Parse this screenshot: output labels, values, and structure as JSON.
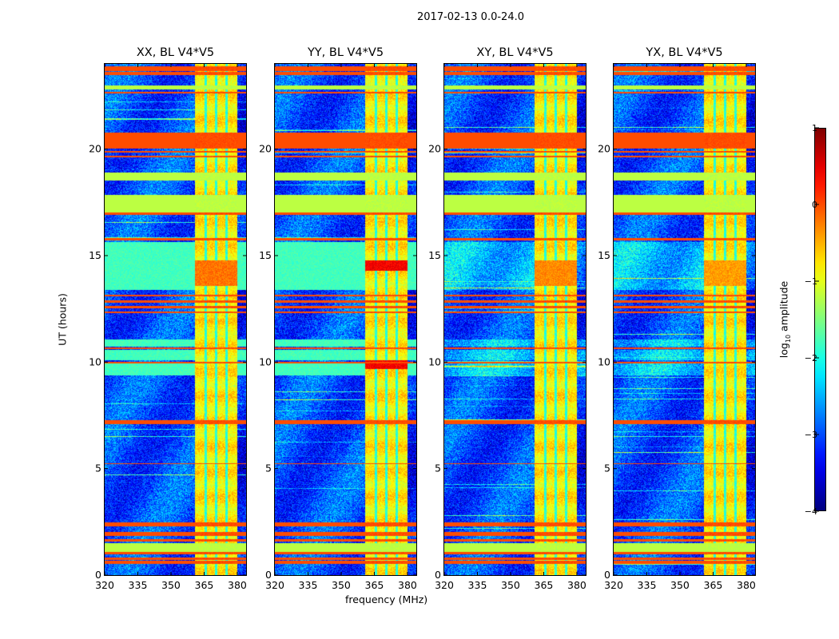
{
  "suptitle": "2017-02-13 0.0-24.0",
  "chart_data": {
    "type": "heatmap",
    "title": "2017-02-13 0.0-24.0",
    "xlabel": "frequency (MHz)",
    "ylabel": "UT (hours)",
    "xlim": [
      320,
      384
    ],
    "ylim": [
      0,
      24
    ],
    "xticks": [
      320,
      335,
      350,
      365,
      380
    ],
    "yticks": [
      0,
      5,
      10,
      15,
      20
    ],
    "colorbar": {
      "label_main": "log",
      "label_sub": "10",
      "label_rest": " amplitude",
      "colormap": "jet",
      "range": [
        -4,
        1
      ],
      "ticks": [
        1,
        0,
        -1,
        -2,
        -3,
        -4
      ],
      "tick_labels": [
        "1",
        "0",
        "−1",
        "−2",
        "−3",
        "−4"
      ]
    },
    "background_level": -3.0,
    "rfi_region": {
      "freq": [
        360.5,
        380
      ],
      "level": -0.8,
      "gaps_mhz": [
        365.5,
        370.2,
        375
      ]
    },
    "bands": [
      {
        "t": [
          23.7,
          23.9
        ],
        "level": 0.0
      },
      {
        "t": [
          23.5,
          23.65
        ],
        "level": 0.0
      },
      {
        "t": [
          22.8,
          23.0
        ],
        "level": -1.2
      },
      {
        "t": [
          22.65,
          22.72
        ],
        "level": 0.0
      },
      {
        "t": [
          20.05,
          20.8
        ],
        "level": 0.0
      },
      {
        "t": [
          19.85,
          19.92
        ],
        "level": 0.0
      },
      {
        "t": [
          19.65,
          19.72
        ],
        "level": 0.0
      },
      {
        "t": [
          18.55,
          18.9
        ],
        "level": -1.2
      },
      {
        "t": [
          17.05,
          17.85
        ],
        "level": -1.2
      },
      {
        "t": [
          16.95,
          17.05
        ],
        "level": 0.0
      },
      {
        "t": [
          15.75,
          15.85
        ],
        "level": 0.0
      },
      {
        "t": [
          13.4,
          15.65
        ],
        "level": -1.8,
        "partial": true
      },
      {
        "t": [
          13.1,
          13.2
        ],
        "level": 0.0
      },
      {
        "t": [
          12.8,
          12.9
        ],
        "level": 0.0
      },
      {
        "t": [
          12.55,
          12.65
        ],
        "level": 0.0
      },
      {
        "t": [
          12.3,
          12.38
        ],
        "level": 0.0
      },
      {
        "t": [
          10.75,
          11.1
        ],
        "level": -1.8,
        "partial": true
      },
      {
        "t": [
          10.62,
          10.7
        ],
        "level": 0.0
      },
      {
        "t": [
          10.1,
          10.6
        ],
        "level": -1.8,
        "partial": true
      },
      {
        "t": [
          9.97,
          10.03
        ],
        "level": 0.0
      },
      {
        "t": [
          9.4,
          9.95
        ],
        "level": -1.8,
        "partial": true
      },
      {
        "t": [
          7.1,
          7.3
        ],
        "level": 0.0
      },
      {
        "t": [
          5.22,
          5.28
        ],
        "level": 0.0
      },
      {
        "t": [
          2.3,
          2.5
        ],
        "level": 0.0
      },
      {
        "t": [
          1.85,
          2.05
        ],
        "level": 0.0
      },
      {
        "t": [
          1.6,
          1.7
        ],
        "level": 0.0
      },
      {
        "t": [
          1.1,
          1.5
        ],
        "level": -1.2
      },
      {
        "t": [
          1.0,
          1.1
        ],
        "level": 0.0
      },
      {
        "t": [
          0.75,
          0.85
        ],
        "level": 0.0
      },
      {
        "t": [
          0.55,
          0.7
        ],
        "level": 0.0
      }
    ],
    "panels": [
      {
        "title": "XX, BL V4*V5",
        "seed": 11,
        "partial_bands": true,
        "hot": [
          [
            13.6,
            14.8,
            -0.2
          ]
        ]
      },
      {
        "title": "YY, BL V4*V5",
        "seed": 23,
        "partial_bands": true,
        "hot": [
          [
            14.3,
            14.8,
            0.4
          ],
          [
            9.7,
            10.1,
            0.4
          ]
        ]
      },
      {
        "title": "XY, BL V4*V5",
        "seed": 37,
        "partial_bands": false,
        "hot": [
          [
            13.6,
            14.8,
            -0.3
          ]
        ]
      },
      {
        "title": "YX, BL V4*V5",
        "seed": 53,
        "partial_bands": false,
        "hot": [
          [
            13.6,
            14.8,
            -0.4
          ]
        ]
      }
    ]
  }
}
